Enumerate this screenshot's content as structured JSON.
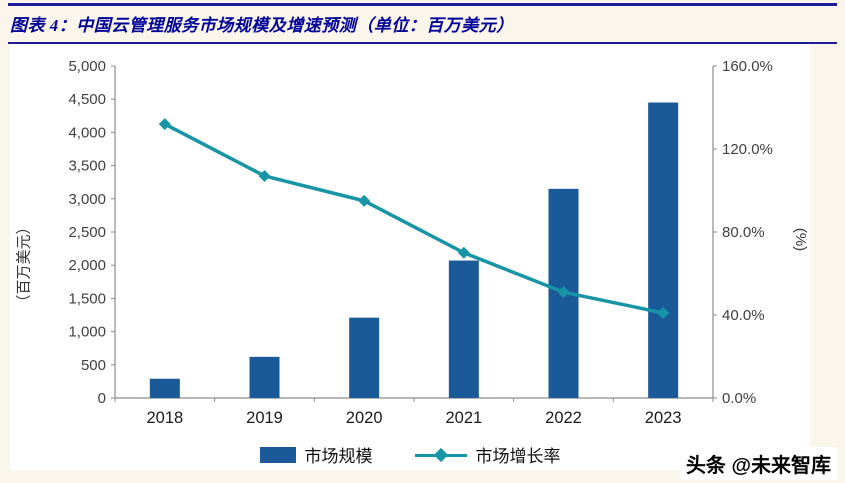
{
  "header": {
    "title": "图表 4：中国云管理服务市场规模及增速预测（单位：百万美元）"
  },
  "footer": {
    "credit": "头条 @未来智库"
  },
  "colors": {
    "bar": "#1a5a99",
    "line": "#1795a6",
    "title_text": "#000099",
    "border": "#1c1c99",
    "axis": "#8c8c8c",
    "tick_text": "#3f3f3f",
    "background": "#fbf6ec",
    "card": "#ffffff"
  },
  "chart_data": {
    "type": "bar",
    "subtype": "combo-bar-line",
    "title": "中国云管理服务市场规模及增速预测",
    "unit": "百万美元",
    "categories": [
      "2018",
      "2019",
      "2020",
      "2021",
      "2022",
      "2023"
    ],
    "series": [
      {
        "name": "市场规模",
        "type": "bar",
        "axis": "left",
        "values": [
          290,
          620,
          1210,
          2070,
          3150,
          4450
        ]
      },
      {
        "name": "市场增长率",
        "type": "line",
        "axis": "right",
        "unit": "%",
        "values": [
          132,
          107,
          95,
          70,
          51,
          41
        ]
      }
    ],
    "left_axis": {
      "label": "（百万美元）",
      "min": 0,
      "max": 5000,
      "step": 500
    },
    "right_axis": {
      "label": "(%)",
      "min": 0,
      "max": 160,
      "step": 40,
      "suffix": "%",
      "decimals": 1
    },
    "legend_position": "bottom",
    "grid": false
  }
}
